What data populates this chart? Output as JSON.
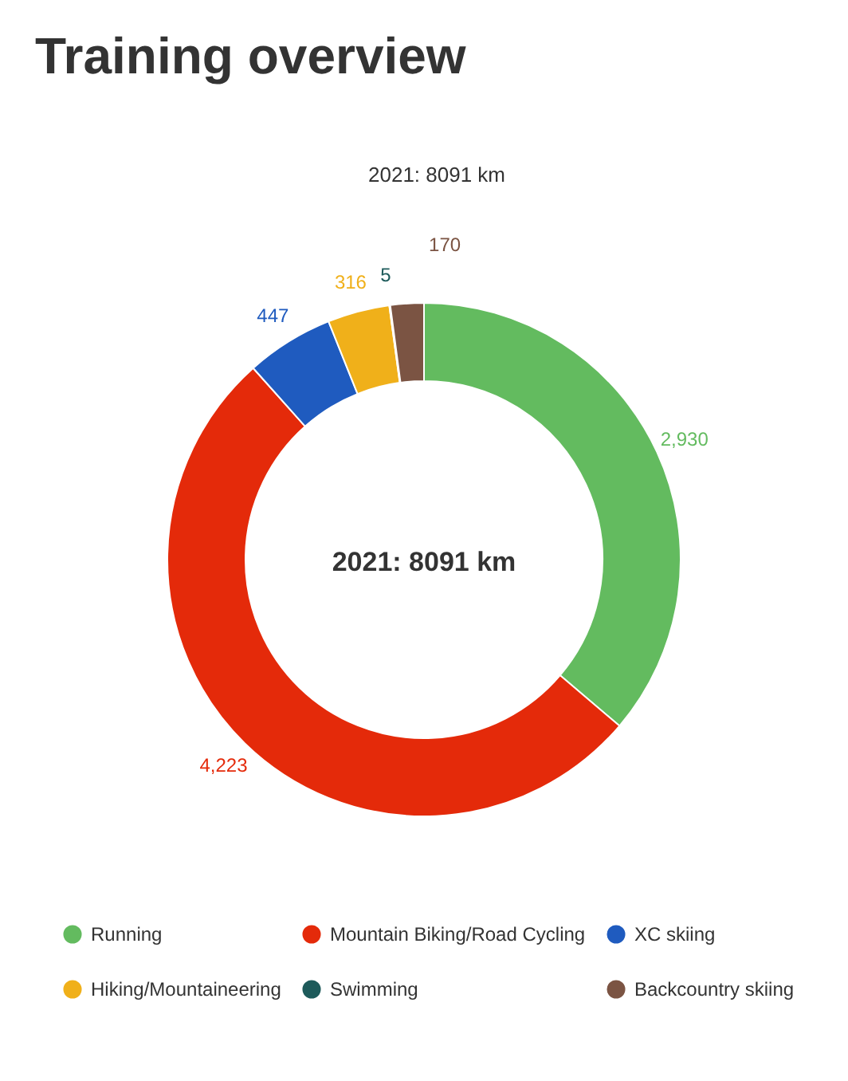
{
  "chart_data": {
    "type": "donut",
    "title": "Training overview",
    "subtitle": "2021: 8091 km",
    "categories": [
      "Running",
      "Mountain Biking/Road Cycling",
      "XC skiing",
      "Hiking/Mountaineering",
      "Swimming",
      "Backcountry skiing"
    ],
    "values": [
      2930,
      4223,
      447,
      316,
      5,
      170
    ],
    "colors": [
      "#63bb5f",
      "#e42a0a",
      "#1f5bbf",
      "#f0b01a",
      "#1d5a5a",
      "#7b5443"
    ],
    "annotations": [
      "2021: 8091 km"
    ],
    "value_labels": [
      "2,930",
      "4,223",
      "447",
      "316",
      "5",
      "170"
    ],
    "legend": "bottom"
  }
}
